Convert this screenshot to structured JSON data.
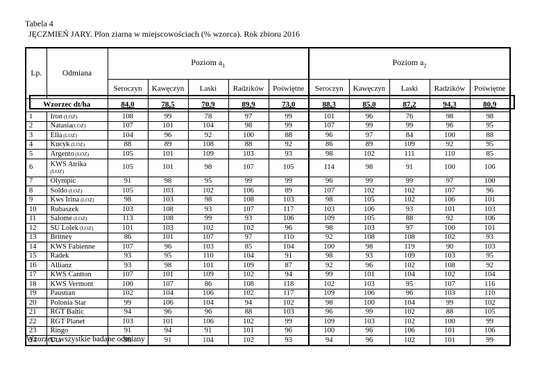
{
  "title": {
    "line1": "Tabela 4",
    "line2": "JĘCZMIEŃ JARY. Plon ziarna w miejscowościach (% wzorca). Rok zbioru 2016"
  },
  "table": {
    "col_lp": "Lp.",
    "col_odmiana": "Odmiana",
    "level1": {
      "prefix": "Poziom a",
      "sub": "1"
    },
    "level2": {
      "prefix": "Poziom a",
      "sub": "2"
    },
    "locations": [
      "Seroczyn",
      "Kawęczyn",
      "Laski",
      "Radzików",
      "Poświętne"
    ],
    "wzorzec_label": "Wzorzec dt/ha",
    "wzorzec_values": [
      "84,0",
      "78,5",
      "70,9",
      "89,9",
      "73,0",
      "88,3",
      "85,0",
      "87,2",
      "94,3",
      "80,9"
    ],
    "rows": [
      {
        "lp": "1",
        "name": "Iron",
        "suffix": " (LOZ)",
        "values": [
          108,
          99,
          78,
          97,
          99,
          101,
          96,
          76,
          98,
          98
        ]
      },
      {
        "lp": "2",
        "name": "Natasia",
        "suffix": "(LOZ)",
        "values": [
          107,
          101,
          104,
          98,
          99,
          107,
          99,
          99,
          96,
          95
        ]
      },
      {
        "lp": "3",
        "name": "Ella",
        "suffix": " (LOZ)",
        "values": [
          104,
          96,
          92,
          100,
          88,
          96,
          97,
          84,
          100,
          88
        ]
      },
      {
        "lp": "4",
        "name": "Kucyk",
        "suffix": " (LOZ)",
        "values": [
          88,
          89,
          108,
          88,
          92,
          86,
          89,
          109,
          92,
          95
        ]
      },
      {
        "lp": "5",
        "name": "Argento",
        "suffix": " (LOZ)",
        "values": [
          105,
          101,
          109,
          103,
          93,
          98,
          102,
          111,
          110,
          85
        ]
      },
      {
        "lp": "6",
        "name": "KWS Atrika",
        "suffix": "(LOZ)",
        "suffix_newline": true,
        "values": [
          105,
          101,
          98,
          107,
          105,
          114,
          98,
          91,
          100,
          106
        ]
      },
      {
        "lp": "7",
        "name": "Olympic",
        "suffix": "",
        "values": [
          91,
          98,
          95,
          99,
          99,
          96,
          99,
          99,
          97,
          100
        ]
      },
      {
        "lp": "8",
        "name": "Soldo",
        "suffix": " (LOZ)",
        "values": [
          105,
          103,
          102,
          106,
          89,
          107,
          102,
          102,
          107,
          96
        ]
      },
      {
        "lp": "9",
        "name": "Kws Irina",
        "suffix": " (LOZ)",
        "values": [
          98,
          103,
          98,
          108,
          103,
          98,
          105,
          102,
          106,
          101
        ]
      },
      {
        "lp": "10",
        "name": "Rubaszek",
        "suffix": "",
        "values": [
          103,
          108,
          93,
          107,
          117,
          103,
          106,
          93,
          101,
          103
        ]
      },
      {
        "lp": "11",
        "name": "Salome",
        "suffix": " (LOZ)",
        "values": [
          113,
          108,
          99,
          93,
          106,
          109,
          105,
          88,
          92,
          106
        ]
      },
      {
        "lp": "12",
        "name": "SU Lolek",
        "suffix": " (LOZ)",
        "values": [
          101,
          103,
          102,
          102,
          96,
          98,
          103,
          97,
          100,
          101
        ]
      },
      {
        "lp": "13",
        "name": "Britney",
        "suffix": "",
        "values": [
          86,
          101,
          107,
          97,
          110,
          92,
          108,
          108,
          102,
          93
        ]
      },
      {
        "lp": "14",
        "name": "KWS Fabienne",
        "suffix": "",
        "values": [
          107,
          96,
          103,
          85,
          104,
          100,
          98,
          119,
          90,
          103
        ]
      },
      {
        "lp": "15",
        "name": "Radek",
        "suffix": "",
        "values": [
          93,
          95,
          110,
          104,
          91,
          98,
          93,
          109,
          103,
          95
        ]
      },
      {
        "lp": "16",
        "name": "Allianz",
        "suffix": "",
        "values": [
          93,
          98,
          101,
          109,
          87,
          92,
          96,
          102,
          108,
          92
        ]
      },
      {
        "lp": "17",
        "name": "KWS Cantton",
        "suffix": "",
        "values": [
          107,
          101,
          109,
          102,
          94,
          99,
          101,
          104,
          102,
          104
        ]
      },
      {
        "lp": "18",
        "name": "KWS Vermont",
        "suffix": "",
        "values": [
          100,
          107,
          86,
          108,
          118,
          102,
          103,
          95,
          107,
          116
        ]
      },
      {
        "lp": "19",
        "name": "Paustian",
        "suffix": "",
        "values": [
          102,
          104,
          106,
          102,
          117,
          109,
          106,
          96,
          103,
          110
        ]
      },
      {
        "lp": "20",
        "name": "Polonia Star",
        "suffix": "",
        "values": [
          99,
          106,
          104,
          94,
          102,
          98,
          100,
          104,
          99,
          102
        ]
      },
      {
        "lp": "21",
        "name": "RGT Baltic",
        "suffix": "",
        "values": [
          94,
          96,
          96,
          88,
          103,
          96,
          99,
          102,
          88,
          105
        ]
      },
      {
        "lp": "22",
        "name": "RGT Planet",
        "suffix": "",
        "values": [
          103,
          101,
          106,
          102,
          99,
          109,
          103,
          102,
          100,
          99
        ]
      },
      {
        "lp": "23",
        "name": "Ringo",
        "suffix": "",
        "values": [
          91,
          94,
          91,
          101,
          96,
          100,
          96,
          106,
          101,
          106
        ]
      },
      {
        "lp": "24",
        "name": "Uta",
        "suffix": "",
        "values": [
          98,
          91,
          104,
          102,
          93,
          94,
          96,
          102,
          101,
          99
        ]
      }
    ]
  },
  "footer": "Wzorzec: wszystkie badane odmiany"
}
